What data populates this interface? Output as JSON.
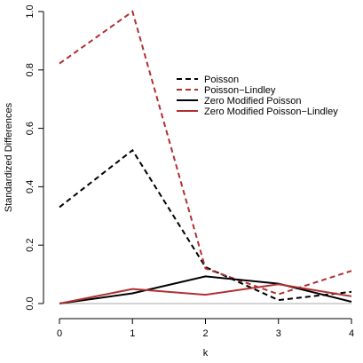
{
  "chart_data": {
    "type": "line",
    "title": "",
    "xlabel": "k",
    "ylabel": "Standardized Differences",
    "x": [
      0,
      1,
      2,
      3,
      4
    ],
    "x_ticks": [
      "0",
      "1",
      "2",
      "3",
      "4"
    ],
    "y_ticks": [
      "0.0",
      "0.2",
      "0.4",
      "0.6",
      "0.8",
      "1.0"
    ],
    "xlim": [
      0,
      4
    ],
    "ylim": [
      0,
      1.0
    ],
    "grid": false,
    "reference_line_y": 0,
    "legend_position": "upper-right",
    "series": [
      {
        "name": "Poisson",
        "color": "#000000",
        "style": "dashed",
        "values": [
          0.33,
          0.525,
          0.125,
          0.012,
          0.04
        ]
      },
      {
        "name": "Poisson−Lindley",
        "color": "#b03030",
        "style": "dashed",
        "values": [
          0.822,
          1.0,
          0.12,
          0.032,
          0.112
        ]
      },
      {
        "name": "Zero Modified Poisson",
        "color": "#000000",
        "style": "solid",
        "values": [
          0.0,
          0.035,
          0.093,
          0.068,
          0.006
        ]
      },
      {
        "name": "Zero Modified Poisson−Lindley",
        "color": "#b03030",
        "style": "solid",
        "values": [
          0.0,
          0.05,
          0.03,
          0.066,
          0.025
        ]
      }
    ]
  }
}
